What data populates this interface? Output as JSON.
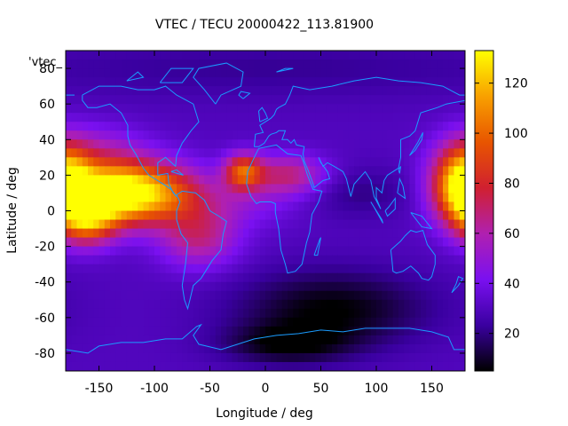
{
  "chart_data": {
    "type": "heatmap",
    "title": "VTEC / TECU 20000422_113.81900",
    "xlabel": "Longitude / deg",
    "ylabel": "Latitude / deg",
    "series_label": "'vtec_",
    "xlim": [
      -180,
      180
    ],
    "ylim": [
      -90,
      90
    ],
    "xticks": [
      -150,
      -100,
      -50,
      0,
      50,
      100,
      150
    ],
    "yticks": [
      -80,
      -60,
      -40,
      -20,
      0,
      20,
      40,
      60,
      80
    ],
    "colorbar": {
      "range": [
        5,
        133
      ],
      "ticks": [
        20,
        40,
        60,
        80,
        100,
        120
      ],
      "palette": [
        "#000000",
        "#3a00a0",
        "#7a10f0",
        "#b020b0",
        "#d02030",
        "#e85500",
        "#f8a000",
        "#ffff00"
      ]
    },
    "grid": {
      "lon_step": 5,
      "lat_step": 5,
      "background_tec": 30,
      "blobs": [
        {
          "lon": -140,
          "lat": 10,
          "sx": 30,
          "sy": 12,
          "amp": 100
        },
        {
          "lon": -95,
          "lat": 10,
          "sx": 30,
          "sy": 12,
          "amp": 55
        },
        {
          "lon": -160,
          "lat": -5,
          "sx": 18,
          "sy": 10,
          "amp": 60
        },
        {
          "lon": -150,
          "lat": 35,
          "sx": 30,
          "sy": 10,
          "amp": 18
        },
        {
          "lon": 175,
          "lat": 15,
          "sx": 20,
          "sy": 15,
          "amp": 55
        },
        {
          "lon": -180,
          "lat": 15,
          "sx": 15,
          "sy": 15,
          "amp": 45
        },
        {
          "lon": -20,
          "lat": 22,
          "sx": 12,
          "sy": 7,
          "amp": 60
        },
        {
          "lon": 20,
          "lat": 20,
          "sx": 25,
          "sy": 8,
          "amp": 38
        },
        {
          "lon": -60,
          "lat": -15,
          "sx": 25,
          "sy": 12,
          "amp": 35
        },
        {
          "lon": -25,
          "lat": 5,
          "sx": 40,
          "sy": 10,
          "amp": 15
        },
        {
          "lon": 60,
          "lat": -55,
          "sx": 60,
          "sy": 15,
          "amp": -25
        },
        {
          "lon": 20,
          "lat": -75,
          "sx": 40,
          "sy": 8,
          "amp": -22
        },
        {
          "lon": 80,
          "lat": 10,
          "sx": 40,
          "sy": 10,
          "amp": -10
        },
        {
          "lon": 0,
          "lat": 80,
          "sx": 200,
          "sy": 12,
          "amp": -8
        }
      ]
    },
    "coastline_color": "#1a9cff",
    "coastlines": [
      [
        [
          -165,
          65
        ],
        [
          -150,
          70
        ],
        [
          -130,
          70
        ],
        [
          -115,
          68
        ],
        [
          -100,
          68
        ],
        [
          -90,
          70
        ],
        [
          -80,
          65
        ],
        [
          -65,
          60
        ],
        [
          -60,
          50
        ],
        [
          -67,
          45
        ],
        [
          -75,
          38
        ],
        [
          -80,
          31
        ],
        [
          -81,
          25
        ],
        [
          -90,
          30
        ],
        [
          -97,
          27
        ],
        [
          -97,
          20
        ],
        [
          -88,
          21
        ],
        [
          -87,
          15
        ],
        [
          -83,
          10
        ],
        [
          -80,
          8
        ],
        [
          -85,
          12
        ],
        [
          -92,
          15
        ],
        [
          -105,
          20
        ],
        [
          -110,
          24
        ],
        [
          -117,
          32
        ],
        [
          -122,
          37
        ],
        [
          -124,
          42
        ],
        [
          -124,
          48
        ],
        [
          -130,
          55
        ],
        [
          -140,
          60
        ],
        [
          -152,
          58
        ],
        [
          -160,
          58
        ],
        [
          -165,
          62
        ],
        [
          -165,
          65
        ]
      ],
      [
        [
          -80,
          9
        ],
        [
          -75,
          11
        ],
        [
          -63,
          10
        ],
        [
          -55,
          6
        ],
        [
          -50,
          0
        ],
        [
          -42,
          -3
        ],
        [
          -35,
          -6
        ],
        [
          -38,
          -13
        ],
        [
          -40,
          -22
        ],
        [
          -48,
          -28
        ],
        [
          -55,
          -35
        ],
        [
          -58,
          -38
        ],
        [
          -65,
          -42
        ],
        [
          -68,
          -50
        ],
        [
          -70,
          -55
        ],
        [
          -73,
          -50
        ],
        [
          -75,
          -42
        ],
        [
          -72,
          -30
        ],
        [
          -70,
          -18
        ],
        [
          -76,
          -13
        ],
        [
          -80,
          -5
        ],
        [
          -80,
          0
        ],
        [
          -77,
          5
        ],
        [
          -80,
          9
        ]
      ],
      [
        [
          -17,
          15
        ],
        [
          -16,
          22
        ],
        [
          -10,
          30
        ],
        [
          -6,
          35
        ],
        [
          10,
          37
        ],
        [
          20,
          32
        ],
        [
          32,
          31
        ],
        [
          34,
          28
        ],
        [
          38,
          20
        ],
        [
          43,
          12
        ],
        [
          51,
          11
        ],
        [
          48,
          5
        ],
        [
          42,
          -2
        ],
        [
          40,
          -12
        ],
        [
          37,
          -18
        ],
        [
          35,
          -24
        ],
        [
          33,
          -30
        ],
        [
          27,
          -34
        ],
        [
          20,
          -35
        ],
        [
          18,
          -30
        ],
        [
          14,
          -22
        ],
        [
          12,
          -10
        ],
        [
          9,
          -1
        ],
        [
          9,
          4
        ],
        [
          5,
          5
        ],
        [
          -5,
          5
        ],
        [
          -8,
          4
        ],
        [
          -13,
          8
        ],
        [
          -17,
          15
        ]
      ],
      [
        [
          -10,
          36
        ],
        [
          -9,
          43
        ],
        [
          -2,
          44
        ],
        [
          -5,
          48
        ],
        [
          5,
          52
        ],
        [
          8,
          54
        ],
        [
          10,
          57
        ],
        [
          12,
          58
        ],
        [
          18,
          60
        ],
        [
          22,
          65
        ],
        [
          25,
          70
        ],
        [
          40,
          68
        ],
        [
          60,
          70
        ],
        [
          80,
          73
        ],
        [
          100,
          75
        ],
        [
          120,
          73
        ],
        [
          140,
          72
        ],
        [
          160,
          70
        ],
        [
          175,
          65
        ],
        [
          180,
          65
        ]
      ],
      [
        [
          -180,
          65
        ],
        [
          -172,
          65
        ]
      ],
      [
        [
          180,
          62
        ],
        [
          163,
          60
        ],
        [
          155,
          58
        ],
        [
          140,
          55
        ],
        [
          135,
          45
        ],
        [
          130,
          42
        ],
        [
          122,
          40
        ],
        [
          122,
          30
        ],
        [
          120,
          24
        ],
        [
          110,
          20
        ],
        [
          107,
          17
        ],
        [
          105,
          10
        ],
        [
          100,
          13
        ],
        [
          100,
          7
        ],
        [
          104,
          1
        ],
        [
          98,
          8
        ],
        [
          95,
          17
        ],
        [
          90,
          22
        ],
        [
          80,
          15
        ],
        [
          77,
          8
        ],
        [
          73,
          18
        ],
        [
          70,
          22
        ],
        [
          62,
          25
        ],
        [
          56,
          27
        ],
        [
          52,
          25
        ],
        [
          48,
          30
        ],
        [
          50,
          27
        ],
        [
          56,
          22
        ],
        [
          58,
          18
        ],
        [
          52,
          17
        ],
        [
          44,
          13
        ],
        [
          43,
          15
        ],
        [
          39,
          22
        ],
        [
          35,
          28
        ],
        [
          34,
          32
        ],
        [
          35,
          36
        ],
        [
          28,
          37
        ],
        [
          26,
          40
        ],
        [
          23,
          38
        ],
        [
          20,
          40
        ],
        [
          15,
          40
        ],
        [
          18,
          45
        ],
        [
          12,
          45
        ],
        [
          10,
          44
        ],
        [
          5,
          43
        ],
        [
          3,
          42
        ],
        [
          -1,
          38
        ],
        [
          -6,
          36
        ],
        [
          -10,
          36
        ]
      ],
      [
        [
          113,
          -22
        ],
        [
          114,
          -27
        ],
        [
          115,
          -34
        ],
        [
          118,
          -35
        ],
        [
          124,
          -34
        ],
        [
          131,
          -31
        ],
        [
          138,
          -35
        ],
        [
          141,
          -38
        ],
        [
          147,
          -39
        ],
        [
          150,
          -37
        ],
        [
          153,
          -30
        ],
        [
          153,
          -25
        ],
        [
          146,
          -19
        ],
        [
          142,
          -11
        ],
        [
          136,
          -12
        ],
        [
          131,
          -11
        ],
        [
          126,
          -14
        ],
        [
          122,
          -17
        ],
        [
          113,
          -22
        ]
      ],
      [
        [
          -180,
          -78
        ],
        [
          -160,
          -80
        ],
        [
          -150,
          -76
        ],
        [
          -130,
          -74
        ],
        [
          -110,
          -74
        ],
        [
          -90,
          -72
        ],
        [
          -75,
          -72
        ],
        [
          -62,
          -65
        ],
        [
          -58,
          -64
        ],
        [
          -65,
          -70
        ],
        [
          -60,
          -75
        ],
        [
          -40,
          -78
        ],
        [
          -30,
          -76
        ],
        [
          -10,
          -72
        ],
        [
          10,
          -70
        ],
        [
          30,
          -69
        ],
        [
          50,
          -67
        ],
        [
          70,
          -68
        ],
        [
          90,
          -66
        ],
        [
          110,
          -66
        ],
        [
          130,
          -66
        ],
        [
          150,
          -68
        ],
        [
          165,
          -71
        ],
        [
          170,
          -78
        ],
        [
          180,
          -78
        ]
      ],
      [
        [
          -20,
          63
        ],
        [
          -14,
          66
        ],
        [
          -22,
          67
        ],
        [
          -24,
          65
        ],
        [
          -20,
          63
        ]
      ],
      [
        [
          -5,
          50
        ],
        [
          2,
          52
        ],
        [
          0,
          55
        ],
        [
          -3,
          58
        ],
        [
          -6,
          56
        ],
        [
          -5,
          50
        ]
      ],
      [
        [
          -45,
          60
        ],
        [
          -40,
          65
        ],
        [
          -22,
          70
        ],
        [
          -20,
          78
        ],
        [
          -35,
          83
        ],
        [
          -60,
          80
        ],
        [
          -65,
          75
        ],
        [
          -55,
          68
        ],
        [
          -45,
          60
        ]
      ],
      [
        [
          130,
          31
        ],
        [
          135,
          34
        ],
        [
          141,
          40
        ],
        [
          142,
          44
        ],
        [
          137,
          38
        ],
        [
          130,
          31
        ]
      ],
      [
        [
          95,
          5
        ],
        [
          105,
          -5
        ],
        [
          106,
          -7
        ],
        [
          98,
          2
        ],
        [
          95,
          5
        ]
      ],
      [
        [
          108,
          0
        ],
        [
          110,
          -3
        ],
        [
          117,
          1
        ],
        [
          117,
          7
        ],
        [
          111,
          2
        ],
        [
          108,
          0
        ]
      ],
      [
        [
          131,
          -1
        ],
        [
          141,
          -3
        ],
        [
          150,
          -10
        ],
        [
          141,
          -9
        ],
        [
          131,
          -1
        ]
      ],
      [
        [
          44,
          -25
        ],
        [
          49,
          -16
        ],
        [
          50,
          -15
        ],
        [
          47,
          -25
        ],
        [
          44,
          -25
        ]
      ],
      [
        [
          172,
          -41
        ],
        [
          174,
          -37
        ],
        [
          178,
          -38
        ],
        [
          174,
          -42
        ],
        [
          168,
          -46
        ],
        [
          172,
          -41
        ]
      ],
      [
        [
          -85,
          22
        ],
        [
          -74,
          20
        ],
        [
          -80,
          23
        ],
        [
          -85,
          22
        ]
      ],
      [
        [
          120,
          23
        ],
        [
          122,
          25
        ],
        [
          121,
          21
        ],
        [
          120,
          23
        ]
      ],
      [
        [
          119,
          10
        ],
        [
          126,
          7
        ],
        [
          124,
          14
        ],
        [
          121,
          18
        ],
        [
          119,
          10
        ]
      ],
      [
        [
          -95,
          72
        ],
        [
          -75,
          72
        ],
        [
          -65,
          80
        ],
        [
          -85,
          80
        ],
        [
          -95,
          72
        ]
      ],
      [
        [
          -125,
          73
        ],
        [
          -110,
          75
        ],
        [
          -115,
          78
        ],
        [
          -125,
          73
        ]
      ],
      [
        [
          10,
          78
        ],
        [
          25,
          80
        ],
        [
          18,
          80
        ],
        [
          10,
          78
        ]
      ]
    ]
  }
}
